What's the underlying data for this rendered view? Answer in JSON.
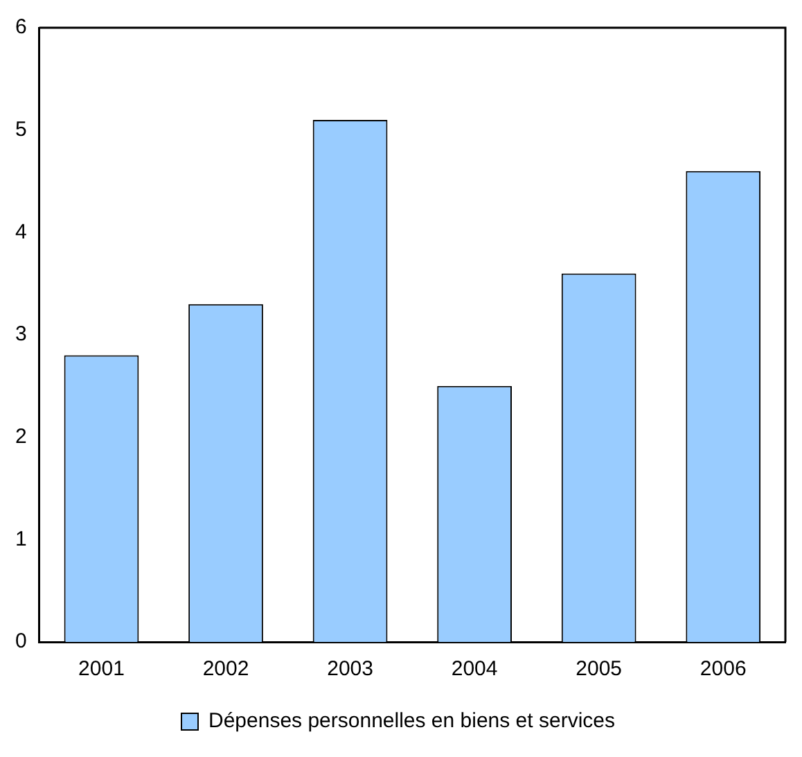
{
  "chart_data": {
    "type": "bar",
    "categories": [
      "2001",
      "2002",
      "2003",
      "2004",
      "2005",
      "2006"
    ],
    "series": [
      {
        "name": "Dépenses personnelles en biens et services",
        "color": "#99ccff",
        "values": [
          2.8,
          3.3,
          5.1,
          2.5,
          3.6,
          4.6
        ]
      }
    ],
    "ylim": [
      0,
      6
    ],
    "yticks": [
      0,
      1,
      2,
      3,
      4,
      5,
      6
    ],
    "grid": false,
    "legend": "bottom"
  }
}
